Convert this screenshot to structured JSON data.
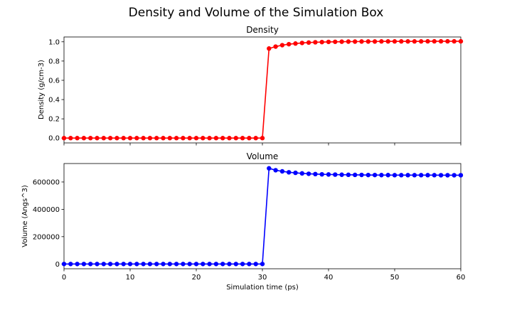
{
  "figure": {
    "title": "Density and Volume of the Simulation Box"
  },
  "chart_data": [
    {
      "type": "line",
      "title": "Density",
      "xlabel": "",
      "ylabel": "Density (g/cm-3)",
      "xlim": [
        0,
        60
      ],
      "ylim": [
        -0.05,
        1.05
      ],
      "xticks": [
        0,
        10,
        20,
        30,
        40,
        50,
        60
      ],
      "xtick_labels_visible": false,
      "yticks": [
        0.0,
        0.2,
        0.4,
        0.6,
        0.8,
        1.0
      ],
      "ytick_labels": [
        "0.0",
        "0.2",
        "0.4",
        "0.6",
        "0.8",
        "1.0"
      ],
      "grid": false,
      "color": "#ff0000",
      "marker": "circle",
      "series": [
        {
          "x": [
            0,
            1,
            2,
            3,
            4,
            5,
            6,
            7,
            8,
            9,
            10,
            11,
            12,
            13,
            14,
            15,
            16,
            17,
            18,
            19,
            20,
            21,
            22,
            23,
            24,
            25,
            26,
            27,
            28,
            29,
            30,
            31,
            32,
            33,
            34,
            35,
            36,
            37,
            38,
            39,
            40,
            41,
            42,
            43,
            44,
            45,
            46,
            47,
            48,
            49,
            50,
            51,
            52,
            53,
            54,
            55,
            56,
            57,
            58,
            59,
            60
          ],
          "values": [
            0,
            0,
            0,
            0,
            0,
            0,
            0,
            0,
            0,
            0,
            0,
            0,
            0,
            0,
            0,
            0,
            0,
            0,
            0,
            0,
            0,
            0,
            0,
            0,
            0,
            0,
            0,
            0,
            0,
            0,
            0,
            0.93,
            0.95,
            0.965,
            0.975,
            0.982,
            0.988,
            0.992,
            0.995,
            0.997,
            0.999,
            1.0,
            1.001,
            1.002,
            1.002,
            1.003,
            1.003,
            1.003,
            1.004,
            1.004,
            1.004,
            1.004,
            1.004,
            1.004,
            1.004,
            1.005,
            1.005,
            1.005,
            1.005,
            1.005,
            1.005
          ]
        }
      ]
    },
    {
      "type": "line",
      "title": "Volume",
      "xlabel": "Simulation time (ps)",
      "ylabel": "Volume (Angs^3)",
      "xlim": [
        0,
        60
      ],
      "ylim": [
        -35000,
        735000
      ],
      "xticks": [
        0,
        10,
        20,
        30,
        40,
        50,
        60
      ],
      "xtick_labels": [
        "0",
        "10",
        "20",
        "30",
        "40",
        "50",
        "60"
      ],
      "yticks": [
        0,
        200000,
        400000,
        600000
      ],
      "ytick_labels": [
        "0",
        "200000",
        "400000",
        "600000"
      ],
      "grid": false,
      "color": "#0000ff",
      "marker": "circle",
      "series": [
        {
          "x": [
            0,
            1,
            2,
            3,
            4,
            5,
            6,
            7,
            8,
            9,
            10,
            11,
            12,
            13,
            14,
            15,
            16,
            17,
            18,
            19,
            20,
            21,
            22,
            23,
            24,
            25,
            26,
            27,
            28,
            29,
            30,
            31,
            32,
            33,
            34,
            35,
            36,
            37,
            38,
            39,
            40,
            41,
            42,
            43,
            44,
            45,
            46,
            47,
            48,
            49,
            50,
            51,
            52,
            53,
            54,
            55,
            56,
            57,
            58,
            59,
            60
          ],
          "values": [
            0,
            0,
            0,
            0,
            0,
            0,
            0,
            0,
            0,
            0,
            0,
            0,
            0,
            0,
            0,
            0,
            0,
            0,
            0,
            0,
            0,
            0,
            0,
            0,
            0,
            0,
            0,
            0,
            0,
            0,
            0,
            700000,
            686000,
            678000,
            671000,
            667000,
            663000,
            660000,
            658000,
            656000,
            655000,
            654000,
            653000,
            652500,
            652000,
            651500,
            651000,
            651000,
            650500,
            650500,
            650000,
            650000,
            650000,
            650000,
            650000,
            650000,
            650000,
            649500,
            649500,
            649500,
            649500
          ]
        }
      ]
    }
  ]
}
